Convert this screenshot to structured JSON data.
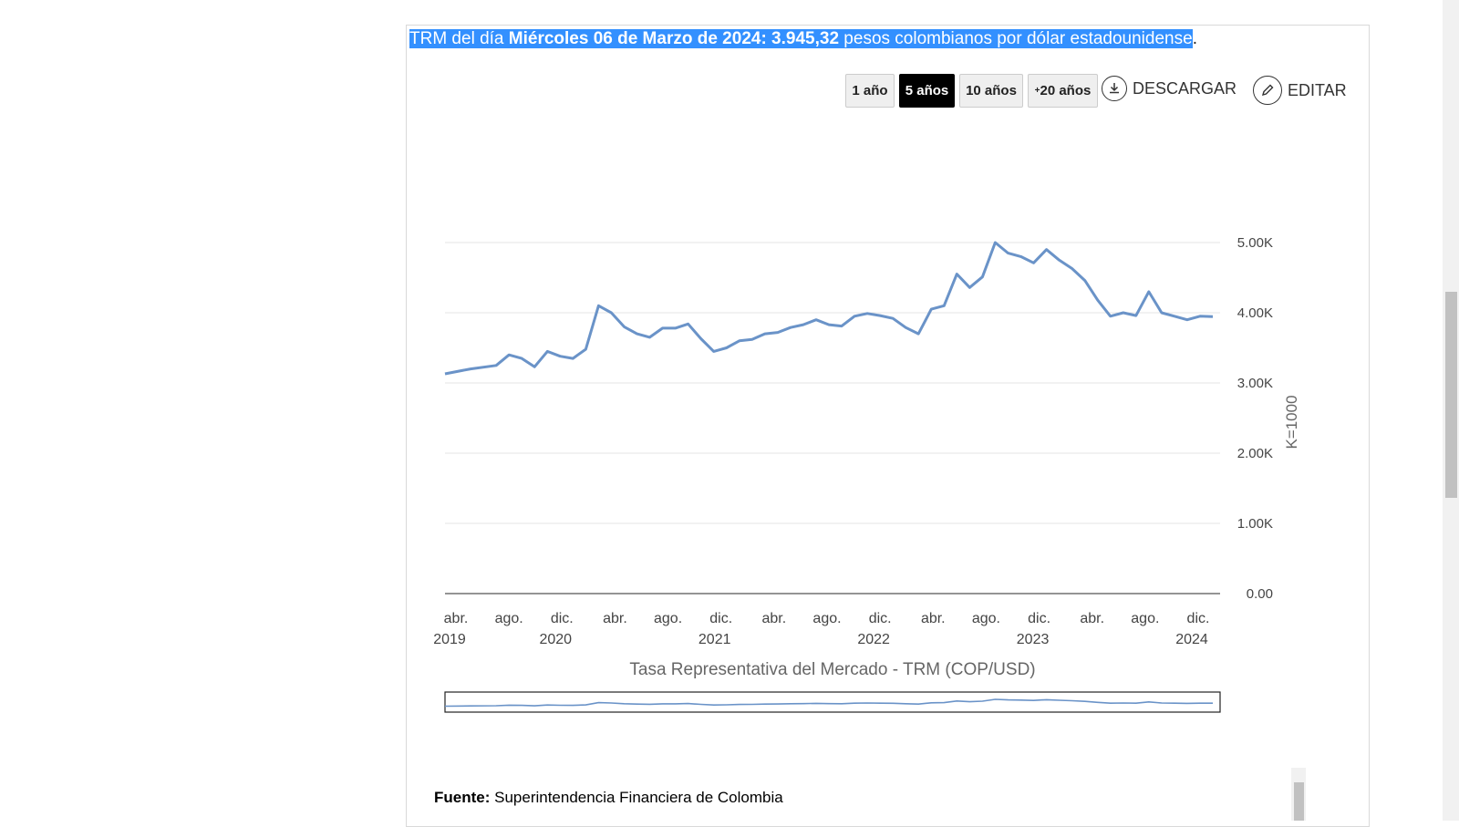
{
  "headline": {
    "prefix": "TRM del día ",
    "bold": "Miércoles 06 de Marzo de 2024: 3.945,32",
    "suffix": " pesos colombianos por dólar estadounidense",
    "period": "."
  },
  "range_buttons": [
    {
      "label": "1 año",
      "active": false
    },
    {
      "label": "5 años",
      "active": true
    },
    {
      "label": "10 años",
      "active": false
    },
    {
      "label_sup": "+",
      "label": "20 años",
      "active": false
    }
  ],
  "actions": {
    "download_label": "DESCARGAR",
    "edit_label": "EDITAR"
  },
  "source": {
    "label": "Fuente:",
    "value": " Superintendencia Financiera de Colombia"
  },
  "colors": {
    "line": "#6a93c8",
    "selection": "#3390ff"
  },
  "chart_data": {
    "type": "line",
    "title": "",
    "xlabel": "Tasa Representativa del Mercado - TRM (COP/USD)",
    "ylabel": "K=1000",
    "ylim": [
      0,
      5000
    ],
    "y_ticks": [
      0,
      1000,
      2000,
      3000,
      4000,
      5000
    ],
    "y_tick_labels": [
      "0.00",
      "1.00K",
      "2.00K",
      "3.00K",
      "4.00K",
      "5.00K"
    ],
    "x_tick_labels": [
      {
        "month": "abr.",
        "year": "2019"
      },
      {
        "month": "ago.",
        "year": ""
      },
      {
        "month": "dic.",
        "year": "2020"
      },
      {
        "month": "abr.",
        "year": ""
      },
      {
        "month": "ago.",
        "year": ""
      },
      {
        "month": "dic.",
        "year": "2021"
      },
      {
        "month": "abr.",
        "year": ""
      },
      {
        "month": "ago.",
        "year": ""
      },
      {
        "month": "dic.",
        "year": "2022"
      },
      {
        "month": "abr.",
        "year": ""
      },
      {
        "month": "ago.",
        "year": ""
      },
      {
        "month": "dic.",
        "year": "2023"
      },
      {
        "month": "abr.",
        "year": ""
      },
      {
        "month": "ago.",
        "year": ""
      },
      {
        "month": "dic.",
        "year": "2024"
      }
    ],
    "grid": true,
    "y_axis_position": "right",
    "navigator": true,
    "series": [
      {
        "x": [
          "2019-03",
          "2019-05",
          "2019-07",
          "2019-08",
          "2019-09",
          "2019-10",
          "2019-11",
          "2019-12",
          "2020-01",
          "2020-02",
          "2020-03",
          "2020-04",
          "2020-05",
          "2020-06",
          "2020-07",
          "2020-08",
          "2020-09",
          "2020-10",
          "2020-11",
          "2020-12",
          "2021-01",
          "2021-02",
          "2021-03",
          "2021-04",
          "2021-05",
          "2021-06",
          "2021-07",
          "2021-08",
          "2021-09",
          "2021-10",
          "2021-11",
          "2021-12",
          "2022-01",
          "2022-02",
          "2022-03",
          "2022-04",
          "2022-05",
          "2022-06",
          "2022-07",
          "2022-08",
          "2022-09",
          "2022-10",
          "2022-11",
          "2022-12",
          "2023-01",
          "2023-02",
          "2023-03",
          "2023-04",
          "2023-05",
          "2023-06",
          "2023-07",
          "2023-08",
          "2023-09",
          "2023-10",
          "2023-11",
          "2023-12",
          "2024-01",
          "2024-02",
          "2024-03"
        ],
        "values": [
          3130,
          3200,
          3250,
          3400,
          3350,
          3230,
          3450,
          3380,
          3350,
          3480,
          4100,
          4000,
          3800,
          3700,
          3650,
          3780,
          3780,
          3840,
          3630,
          3450,
          3500,
          3600,
          3620,
          3700,
          3720,
          3790,
          3830,
          3900,
          3830,
          3810,
          3950,
          3990,
          3960,
          3920,
          3790,
          3700,
          4050,
          4100,
          4550,
          4360,
          4510,
          5000,
          4850,
          4800,
          4710,
          4900,
          4750,
          4630,
          4460,
          4180,
          3950,
          4000,
          3960,
          4300,
          4000,
          3950,
          3900,
          3950,
          3945
        ]
      }
    ]
  }
}
